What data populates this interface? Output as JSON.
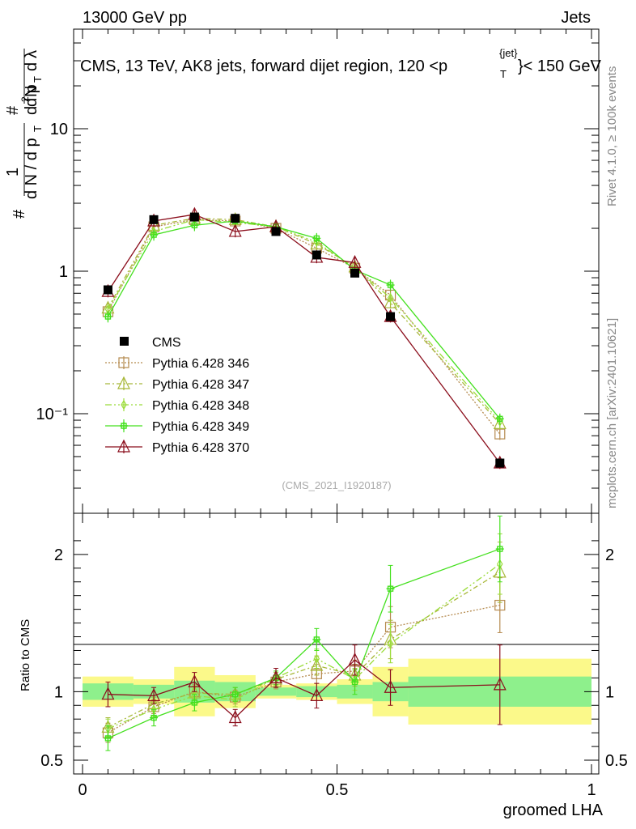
{
  "header": {
    "left": "13000 GeV pp",
    "right": "Jets",
    "right_side_1": "Rivet 4.1.0, ≥ 100k events",
    "right_side_2": "mcplots.cern.ch [arXiv:2401.10621]"
  },
  "chart_data": {
    "type": "line",
    "title": "CMS, 13 TeV, AK8 jets, forward dijet region, 120 <p_T^{jet}> < 150 GeV",
    "title_main": "CMS, 13 TeV, AK8 jets, forward dijet region, 120 <p",
    "title_sup": "{jet}",
    "title_sub": "T",
    "title_end": "}< 150 GeV",
    "analysis_id": "(CMS_2021_I1920187)",
    "xlabel": "groomed LHA",
    "ylabel": "1/(dN/dpT) d²N/(dpT dλ)",
    "xlim": [
      0,
      1
    ],
    "ylim": [
      0.02,
      50
    ],
    "yscale": "log",
    "x_ticks": [
      "0",
      "0.5",
      "1"
    ],
    "y_ticks": [
      "10⁻¹",
      "1",
      "10"
    ],
    "ratio_ylabel": "Ratio to CMS",
    "ratio_ylim": [
      0.4,
      2.3
    ],
    "ratio_ticks": [
      "0.5",
      "1",
      "2"
    ],
    "x": [
      0.05,
      0.14,
      0.22,
      0.3,
      0.38,
      0.46,
      0.535,
      0.605,
      0.82
    ],
    "bin_edges": [
      0.0,
      0.1,
      0.18,
      0.26,
      0.34,
      0.42,
      0.5,
      0.57,
      0.64,
      1.0
    ],
    "cms": {
      "name": "CMS",
      "values": [
        0.74,
        2.3,
        2.4,
        2.35,
        1.9,
        1.3,
        0.97,
        0.48,
        0.045
      ],
      "band_green": [
        0.06,
        0.05,
        0.08,
        0.07,
        0.03,
        0.04,
        0.05,
        0.07,
        0.11
      ],
      "band_yellow": [
        0.11,
        0.09,
        0.18,
        0.12,
        0.05,
        0.06,
        0.09,
        0.18,
        0.24
      ]
    },
    "series": [
      {
        "name": "Pythia 6.428 346",
        "color": "#b58a4e",
        "marker": "square",
        "dash": "2,2",
        "values": [
          0.52,
          2.05,
          2.3,
          2.25,
          2.0,
          1.45,
          1.05,
          0.68,
          0.072
        ],
        "ratio": [
          0.7,
          0.89,
          1.0,
          0.96,
          1.07,
          1.13,
          1.15,
          1.47,
          1.63
        ],
        "ratio_err": [
          0.07,
          0.05,
          0.05,
          0.05,
          0.05,
          0.07,
          0.08,
          0.15,
          0.2
        ]
      },
      {
        "name": "Pythia 6.428 347",
        "color": "#a8b83a",
        "marker": "triangle",
        "dash": "6,3,2,3",
        "values": [
          0.55,
          2.1,
          2.35,
          2.3,
          2.05,
          1.55,
          1.07,
          0.6,
          0.085
        ],
        "ratio": [
          0.74,
          0.91,
          0.99,
          0.98,
          1.09,
          1.19,
          1.12,
          1.38,
          1.87
        ],
        "ratio_err": [
          0.07,
          0.05,
          0.05,
          0.05,
          0.05,
          0.07,
          0.08,
          0.14,
          0.22
        ]
      },
      {
        "name": "Pythia 6.428 348",
        "color": "#9bdc3a",
        "marker": "diamond",
        "dash": "8,3,2,3,2,3",
        "values": [
          0.54,
          1.9,
          2.3,
          2.2,
          2.05,
          1.6,
          1.05,
          0.65,
          0.088
        ],
        "ratio": [
          0.73,
          0.87,
          0.97,
          0.94,
          1.1,
          1.24,
          1.09,
          1.35,
          1.93
        ],
        "ratio_err": [
          0.07,
          0.05,
          0.05,
          0.05,
          0.05,
          0.07,
          0.08,
          0.14,
          0.22
        ]
      },
      {
        "name": "Pythia 6.428 349",
        "color": "#44e01e",
        "marker": "plus",
        "dash": "",
        "values": [
          0.48,
          1.8,
          2.1,
          2.25,
          2.05,
          1.7,
          1.02,
          0.8,
          0.092
        ],
        "ratio": [
          0.66,
          0.81,
          0.92,
          0.98,
          1.1,
          1.38,
          1.07,
          1.75,
          2.04
        ],
        "ratio_err": [
          0.09,
          0.06,
          0.06,
          0.05,
          0.05,
          0.08,
          0.09,
          0.17,
          0.24
        ]
      },
      {
        "name": "Pythia 6.428 370",
        "color": "#8b0e1c",
        "marker": "triangle-open",
        "dash": "",
        "values": [
          0.72,
          2.25,
          2.5,
          1.9,
          2.05,
          1.25,
          1.15,
          0.48,
          0.045
        ],
        "ratio": [
          0.98,
          0.97,
          1.07,
          0.81,
          1.1,
          0.97,
          1.23,
          1.03,
          1.05
        ],
        "ratio_err": [
          0.09,
          0.06,
          0.07,
          0.06,
          0.07,
          0.09,
          0.11,
          0.13,
          0.29
        ]
      }
    ],
    "legend_position": "middle-left"
  }
}
